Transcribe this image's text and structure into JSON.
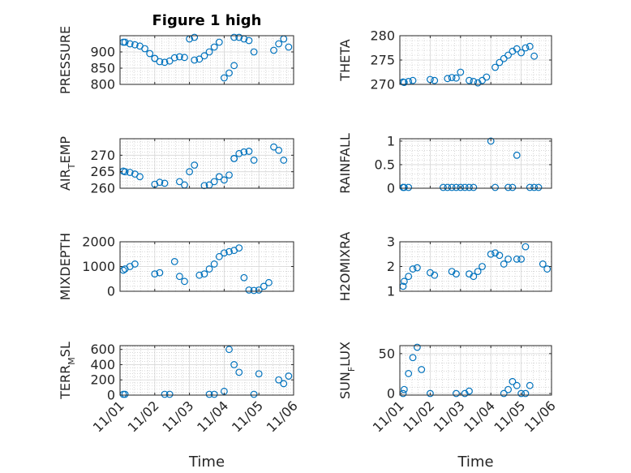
{
  "figure_title": "Figure 1 high",
  "colors": {
    "marker": "#0072BD",
    "axis": "#262626",
    "grid": "#bdbdbd"
  },
  "chart_data": [
    {
      "type": "scatter",
      "title": "Figure 1 high",
      "ylabel": "PRESSURE",
      "xlabel": "",
      "grid": true,
      "xlim": [
        "11/01",
        "11/06"
      ],
      "ylim": [
        800,
        950
      ],
      "yticks": [
        800,
        850,
        900
      ],
      "xticks": [],
      "x": [
        "11/01",
        "11/01",
        "11/01",
        "11/01",
        "11/01",
        "11/01",
        "11/01",
        "11/02",
        "11/02",
        "11/02",
        "11/02",
        "11/02",
        "11/02",
        "11/02",
        "11/02",
        "11/03",
        "11/03",
        "11/03",
        "11/03",
        "11/03",
        "11/03",
        "11/03",
        "11/03",
        "11/04",
        "11/04",
        "11/04",
        "11/04",
        "11/04",
        "11/04",
        "11/04",
        "11/04",
        "11/05",
        "11/05",
        "11/05",
        "11/05"
      ],
      "y": [
        930,
        930,
        925,
        922,
        918,
        910,
        895,
        880,
        870,
        868,
        872,
        882,
        885,
        883,
        880,
        875,
        878,
        888,
        900,
        915,
        930,
        940,
        945,
        945,
        945,
        940,
        935,
        900,
        820,
        835,
        858,
        905,
        925,
        940,
        915
      ]
    },
    {
      "type": "scatter",
      "title": "",
      "ylabel": "THETA",
      "xlabel": "",
      "grid": true,
      "xlim": [
        "11/01",
        "11/06"
      ],
      "ylim": [
        270,
        280
      ],
      "yticks": [
        270,
        275,
        280
      ],
      "xticks": [],
      "x": [
        "11/01",
        "11/01",
        "11/01",
        "11/01",
        "11/02",
        "11/02",
        "11/02",
        "11/02",
        "11/02",
        "11/03",
        "11/03",
        "11/03",
        "11/03",
        "11/03",
        "11/03",
        "11/04",
        "11/04",
        "11/04",
        "11/04",
        "11/04",
        "11/04",
        "11/05",
        "11/05",
        "11/05",
        "11/05"
      ],
      "y": [
        270.5,
        270.4,
        270.6,
        270.8,
        271.2,
        271.4,
        271.3,
        271.0,
        270.8,
        270.8,
        270.6,
        270.3,
        270.8,
        271.5,
        272.5,
        273.5,
        274.5,
        275.3,
        276.0,
        276.8,
        277.3,
        276.5,
        277.5,
        277.8,
        275.8
      ]
    },
    {
      "type": "scatter",
      "title": "",
      "ylabel": "AIR_TEMP",
      "ylabel_main": "AIR",
      "ylabel_sub": "T",
      "ylabel_rest": "EMP",
      "xlabel": "",
      "grid": true,
      "xlim": [
        "11/01",
        "11/06"
      ],
      "ylim": [
        260,
        275
      ],
      "yticks": [
        260,
        265,
        270
      ],
      "xticks": [],
      "x": [
        "11/01",
        "11/01",
        "11/01",
        "11/01",
        "11/01",
        "11/02",
        "11/02",
        "11/02",
        "11/02",
        "11/02",
        "11/03",
        "11/03",
        "11/03",
        "11/03",
        "11/03",
        "11/03",
        "11/04",
        "11/04",
        "11/04",
        "11/04",
        "11/04",
        "11/04",
        "11/04",
        "11/04",
        "11/05",
        "11/05",
        "11/05"
      ],
      "y": [
        265.2,
        265.0,
        264.8,
        264.3,
        263.5,
        262.0,
        261.0,
        261.2,
        261.8,
        261.5,
        260.8,
        261.0,
        262.0,
        263.5,
        265.0,
        267.0,
        269.0,
        270.5,
        271.0,
        271.2,
        268.5,
        262.5,
        264.0,
        269.0,
        272.5,
        271.5,
        268.5
      ]
    },
    {
      "type": "scatter",
      "title": "",
      "ylabel": "RAINFALL",
      "xlabel": "",
      "grid": true,
      "xlim": [
        "11/01",
        "11/06"
      ],
      "ylim": [
        0,
        1.05
      ],
      "yticks": [
        0,
        0.5,
        1
      ],
      "xticks": [],
      "x": [
        "11/01",
        "11/01",
        "11/01",
        "11/02",
        "11/02",
        "11/02",
        "11/02",
        "11/03",
        "11/03",
        "11/03",
        "11/03",
        "11/04",
        "11/04",
        "11/04",
        "11/04",
        "11/04",
        "11/05",
        "11/05",
        "11/05"
      ],
      "y": [
        0,
        0,
        0,
        0,
        0,
        0,
        0,
        0,
        0,
        0,
        0,
        0,
        0,
        0.7,
        1.0,
        0,
        0,
        0,
        0
      ]
    },
    {
      "type": "scatter",
      "title": "",
      "ylabel": "MIXDEPTH",
      "xlabel": "",
      "grid": true,
      "xlim": [
        "11/01",
        "11/06"
      ],
      "ylim": [
        0,
        2000
      ],
      "yticks": [
        0,
        1000,
        2000
      ],
      "xticks": [],
      "x": [
        "11/01",
        "11/01",
        "11/01",
        "11/01",
        "11/02",
        "11/02",
        "11/02",
        "11/02",
        "11/02",
        "11/03",
        "11/03",
        "11/03",
        "11/03",
        "11/03",
        "11/04",
        "11/04",
        "11/04",
        "11/04",
        "11/04",
        "11/04",
        "11/04",
        "11/05",
        "11/05",
        "11/05"
      ],
      "y": [
        850,
        900,
        1000,
        1100,
        1200,
        600,
        400,
        700,
        750,
        650,
        700,
        900,
        1100,
        1400,
        1550,
        1600,
        1650,
        1750,
        550,
        50,
        0,
        50,
        200,
        350
      ]
    },
    {
      "type": "scatter",
      "title": "",
      "ylabel": "H2OMIXRA",
      "xlabel": "",
      "grid": true,
      "xlim": [
        "11/01",
        "11/06"
      ],
      "ylim": [
        1,
        3
      ],
      "yticks": [
        1,
        2,
        3
      ],
      "xticks": [],
      "x": [
        "11/01",
        "11/01",
        "11/01",
        "11/01",
        "11/01",
        "11/02",
        "11/02",
        "11/02",
        "11/02",
        "11/03",
        "11/03",
        "11/03",
        "11/03",
        "11/04",
        "11/04",
        "11/04",
        "11/04",
        "11/04",
        "11/04",
        "11/05",
        "11/05",
        "11/05",
        "11/05"
      ],
      "y": [
        1.2,
        1.4,
        1.6,
        1.9,
        1.95,
        1.8,
        1.7,
        1.75,
        1.65,
        1.7,
        1.6,
        1.8,
        2.0,
        2.3,
        2.5,
        2.55,
        2.45,
        2.1,
        2.3,
        2.1,
        1.9,
        2.3,
        2.8
      ]
    },
    {
      "type": "scatter",
      "title": "",
      "ylabel": "TERR_MSL",
      "ylabel_main": "TERR",
      "ylabel_sub": "M",
      "ylabel_rest": "SL",
      "xlabel": "Time",
      "grid": true,
      "xlim": [
        "11/01",
        "11/06"
      ],
      "ylim": [
        0,
        650
      ],
      "yticks": [
        0,
        200,
        400,
        600
      ],
      "xticks": [
        "11/01",
        "11/02",
        "11/03",
        "11/04",
        "11/05",
        "11/06"
      ],
      "x": [
        "11/01",
        "11/01",
        "11/02",
        "11/02",
        "11/03",
        "11/03",
        "11/04",
        "11/04",
        "11/04",
        "11/04",
        "11/04",
        "11/05",
        "11/05",
        "11/05",
        "11/05"
      ],
      "y": [
        0,
        0,
        0,
        0,
        0,
        0,
        0,
        50,
        600,
        400,
        300,
        200,
        150,
        250,
        280
      ]
    },
    {
      "type": "scatter",
      "title": "",
      "ylabel": "SUN_FLUX",
      "ylabel_main": "SUN",
      "ylabel_sub": "F",
      "ylabel_rest": "LUX",
      "xlabel": "Time",
      "grid": true,
      "xlim": [
        "11/01",
        "11/06"
      ],
      "ylim": [
        -2,
        60
      ],
      "yticks": [
        0,
        50
      ],
      "xticks": [
        "11/01",
        "11/02",
        "11/03",
        "11/04",
        "11/05",
        "11/06"
      ],
      "x": [
        "11/01",
        "11/01",
        "11/01",
        "11/01",
        "11/01",
        "11/01",
        "11/02",
        "11/02",
        "11/03",
        "11/03",
        "11/04",
        "11/04",
        "11/04",
        "11/04",
        "11/05",
        "11/05",
        "11/05"
      ],
      "y": [
        0,
        5,
        25,
        45,
        58,
        30,
        0,
        0,
        0,
        3,
        0,
        5,
        15,
        10,
        0,
        0,
        10
      ]
    }
  ]
}
